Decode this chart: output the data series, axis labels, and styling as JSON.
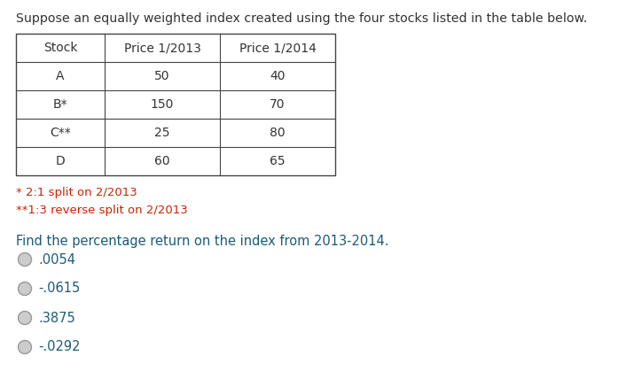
{
  "title": "Suppose an equally weighted index created using the four stocks listed in the table below.",
  "title_color": "#333333",
  "table_headers": [
    "Stock",
    "Price 1/2013",
    "Price 1/2014"
  ],
  "table_rows": [
    [
      "A",
      "50",
      "40"
    ],
    [
      "B*",
      "150",
      "70"
    ],
    [
      "C**",
      "25",
      "80"
    ],
    [
      "D",
      "60",
      "65"
    ]
  ],
  "footnote1": "* 2:1 split on 2/2013",
  "footnote2": "**1:3 reverse split on 2/2013",
  "question": "Find the percentage return on the index from 2013-2014.",
  "question_color": "#1a5c78",
  "options": [
    ".0054",
    "-.0615",
    ".3875",
    "-.0292"
  ],
  "option_color": "#1a5c78",
  "bg_color": "#ffffff",
  "table_border_color": "#444444",
  "text_color": "#333333",
  "footnote_color": "#cc2200"
}
